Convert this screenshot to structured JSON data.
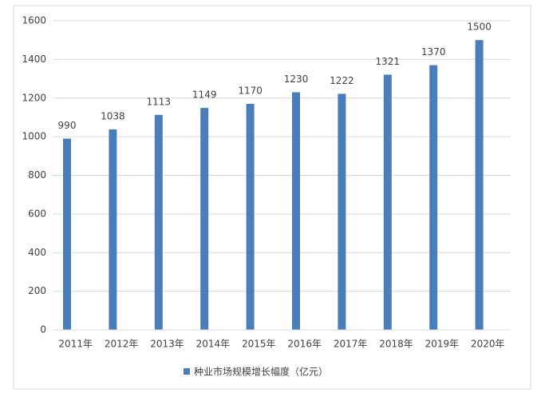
{
  "chart_data": {
    "type": "bar",
    "categories": [
      "2011年",
      "2012年",
      "2013年",
      "2014年",
      "2015年",
      "2016年",
      "2017年",
      "2018年",
      "2019年",
      "2020年"
    ],
    "series": [
      {
        "name": "种业市场规模增长幅度（亿元）",
        "color": "#4a7ebb",
        "values": [
          990,
          1038,
          1113,
          1149,
          1170,
          1230,
          1222,
          1321,
          1370,
          1500
        ]
      }
    ],
    "ylim": [
      0,
      1600
    ],
    "yticks": [
      0,
      200,
      400,
      600,
      800,
      1000,
      1200,
      1400,
      1600
    ],
    "grid": true,
    "legend": "bottom"
  }
}
